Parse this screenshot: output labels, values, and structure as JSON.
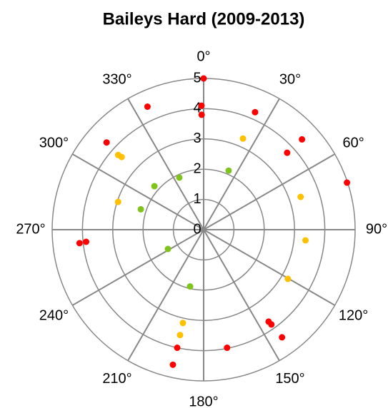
{
  "chart_data": {
    "type": "polar-scatter",
    "title": "Baileys Hard (2009-2013)",
    "rlim": [
      0,
      5
    ],
    "rticks": [
      0,
      1,
      2,
      3,
      4,
      5
    ],
    "angle_ticks": [
      {
        "value": 0,
        "label": "0°"
      },
      {
        "value": 30,
        "label": "30°"
      },
      {
        "value": 60,
        "label": "60°"
      },
      {
        "value": 90,
        "label": "90°"
      },
      {
        "value": 120,
        "label": "120°"
      },
      {
        "value": 150,
        "label": "150°"
      },
      {
        "value": 180,
        "label": "180°"
      },
      {
        "value": 210,
        "label": "210°"
      },
      {
        "value": 240,
        "label": "240°"
      },
      {
        "value": 270,
        "label": "270°"
      },
      {
        "value": 300,
        "label": "300°"
      },
      {
        "value": 330,
        "label": "330°"
      }
    ],
    "grid": true,
    "series": [
      {
        "color": "#ff0000",
        "theta": [
          0,
          359,
          359,
          335.5,
          312,
          23.6,
          47.4,
          47.3,
          71.8,
          263.8,
          264.1,
          144.8,
          144.5,
          144,
          168.8,
          192.6,
          192.8
        ],
        "r": [
          5,
          4.1,
          3.8,
          4.47,
          4.31,
          4.24,
          4.41,
          3.75,
          4.98,
          4.12,
          3.9,
          3.72,
          3.85,
          4.4,
          3.98,
          4.0,
          4.58
        ]
      },
      {
        "color": "#ffc000",
        "theta": [
          23.3,
          311.2,
          311.6,
          288,
          71.3,
          96,
          120.3,
          192.5,
          192.6
        ],
        "r": [
          3.28,
          3.75,
          3.62,
          2.97,
          3.38,
          3.38,
          3.22,
          3.16,
          3.57
        ]
      },
      {
        "color": "#7fc31c",
        "theta": [
          22.9,
          335,
          311.5,
          288,
          241.6,
          193.4
        ],
        "r": [
          2.12,
          1.9,
          2.17,
          2.18,
          1.34,
          1.93
        ]
      }
    ]
  }
}
